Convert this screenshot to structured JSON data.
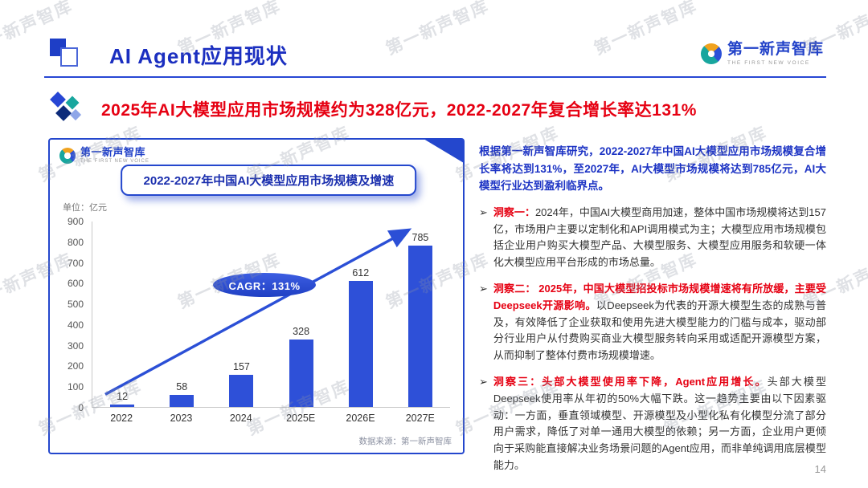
{
  "header": {
    "title": "AI Agent应用现状",
    "logo": {
      "name": "第一新声智库",
      "tagline": "THE FIRST NEW VOICE"
    }
  },
  "subtitle": "2025年AI大模型应用市场规模约为328亿元，2022-2027年复合增长率达131%",
  "chart_panel": {
    "logo": {
      "name": "第一新声智库",
      "tagline": "THE FIRST NEW VOICE"
    },
    "title": "2022-2027年中国AI大模型应用市场规模及增速",
    "unit_label": "单位：亿元",
    "cagr_label": "CAGR：131%",
    "source": "数据来源：第一新声智库"
  },
  "chart_data": {
    "type": "bar",
    "title": "2022-2027年中国AI大模型应用市场规模及增速",
    "categories": [
      "2022",
      "2023",
      "2024",
      "2025E",
      "2026E",
      "2027E"
    ],
    "values": [
      12,
      58,
      157,
      328,
      612,
      785
    ],
    "unit": "亿元",
    "ylabel": "单位：亿元",
    "ylim": [
      0,
      900
    ],
    "yticks": [
      0,
      100,
      200,
      300,
      400,
      500,
      600,
      700,
      800,
      900
    ],
    "grid": false,
    "legend": false,
    "annotation": "CAGR：131%",
    "bar_color": "#2e50d8"
  },
  "right_panel": {
    "intro": "根据第一新声智库研究，2022-2027年中国AI大模型应用市场规模复合增长率将达到131%，至2027年，AI大模型市场规模将达到785亿元，AI大模型行业达到盈利临界点。",
    "bullet": "➢",
    "insights": [
      {
        "lead": "洞察一：",
        "body": "2024年，中国AI大模型商用加速，整体中国市场规模将达到157亿，市场用户主要以定制化和API调用模式为主；大模型应用市场规模包括企业用户购买大模型产品、大模型服务、大模型应用服务和软硬一体化大模型应用平台形成的市场总量。"
      },
      {
        "lead": "洞察二： 2025年，中国大模型招投标市场规模增速将有所放缓，主要受Deepseek开源影响。",
        "body": "以Deepseek为代表的开源大模型生态的成熟与普及，有效降低了企业获取和使用先进大模型能力的门槛与成本，驱动部分行业用户从付费购买商业大模型服务转向采用或适配开源模型方案，从而抑制了整体付费市场规模增速。"
      },
      {
        "lead": "洞察三：头部大模型使用率下降，Agent应用增长。",
        "body": "头部大模型Deepseek使用率从年初的50%大幅下跌。这一趋势主要由以下因素驱动：一方面，垂直领域模型、开源模型及小型化私有化模型分流了部分用户需求，降低了对单一通用大模型的依赖；另一方面，企业用户更倾向于采购能直接解决业务场景问题的Agent应用，而非单纯调用底层模型能力。"
      }
    ]
  },
  "watermark": {
    "text": "第一新声智库",
    "rows": 4,
    "cols": 5
  },
  "page_number": "14",
  "colors": {
    "accent_blue": "#2447cd",
    "title_blue": "#1b2fc0",
    "red": "#e60012",
    "bar_blue": "#2e50d8"
  }
}
